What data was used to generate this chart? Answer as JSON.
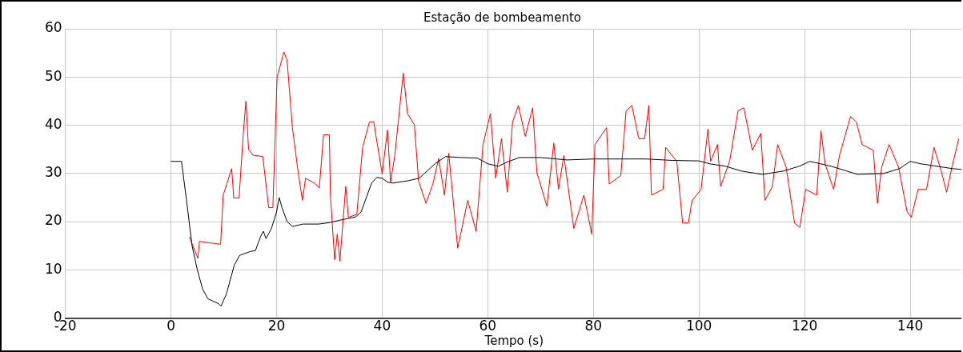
{
  "chart_data": {
    "type": "line",
    "title": "Estação de bombeamento",
    "xlabel": "Tempo (s)",
    "xlim": [
      -20,
      150
    ],
    "xticks": [
      -20,
      0,
      20,
      40,
      60,
      80,
      100,
      120,
      140
    ],
    "ylim": [
      0,
      60
    ],
    "yticks": [
      0,
      10,
      20,
      30,
      40,
      50,
      60
    ],
    "grid": true,
    "legend": false,
    "marker": "none",
    "line_style": "solid",
    "series": [
      {
        "color": "#000000",
        "x": [
          0,
          2,
          3,
          4,
          5,
          6,
          7,
          8,
          9,
          9.5,
          10.5,
          11,
          12,
          13,
          15,
          16,
          17,
          17.5,
          18,
          19,
          20,
          20.5,
          21,
          22,
          23,
          25,
          28,
          30,
          32,
          35,
          36,
          37,
          38,
          39,
          40,
          41,
          42,
          45,
          47,
          48,
          50,
          52,
          55,
          58,
          60,
          62,
          64,
          66,
          70,
          75,
          80,
          85,
          90,
          95,
          100,
          102,
          105,
          108,
          112,
          116,
          119,
          121,
          125,
          128,
          130,
          135,
          138,
          140,
          142,
          145,
          148,
          150
        ],
        "values": [
          32.5,
          32.5,
          24,
          15,
          10,
          6,
          4,
          3.5,
          3,
          2.5,
          5,
          7,
          11,
          13,
          13.8,
          14,
          17,
          18,
          16.5,
          18.5,
          22,
          25,
          23,
          20,
          19,
          19.5,
          19.5,
          19.8,
          20.3,
          21,
          22,
          25,
          28,
          29.2,
          29,
          28.2,
          28,
          28.5,
          29,
          30,
          32,
          33.5,
          33.3,
          33.2,
          32,
          31.5,
          32.5,
          33.3,
          33.3,
          32.8,
          33,
          33,
          33,
          32.7,
          32.6,
          32,
          31.5,
          30.5,
          29.8,
          30.5,
          31.5,
          32.5,
          31.5,
          30.5,
          29.8,
          30,
          31,
          32.5,
          32,
          31.5,
          31,
          30.8
        ]
      },
      {
        "color": "#ff0000",
        "x": [
          3.5,
          5.1,
          5.4,
          9.4,
          9.9,
          11.5,
          11.9,
          12.9,
          13.7,
          14.2,
          14.7,
          15.5,
          17.4,
          18.5,
          19.3,
          20.1,
          21.4,
          22,
          23,
          24.1,
          24.9,
          25.5,
          27.3,
          28.1,
          28.9,
          30,
          30.2,
          31,
          31.5,
          32,
          33.1,
          33.6,
          35.2,
          36.3,
          37.6,
          38.4,
          40,
          41,
          41.6,
          42.4,
          44,
          44.8,
          46.1,
          46.9,
          48.3,
          49.6,
          50.7,
          51.8,
          52.6,
          54.3,
          56.2,
          57.8,
          59.1,
          60.5,
          61.5,
          62.6,
          63.7,
          64.7,
          65.8,
          67.1,
          68.5,
          69.3,
          71.2,
          72.5,
          73.4,
          74.4,
          76.3,
          78.2,
          79.7,
          80.3,
          82.5,
          83,
          85.2,
          86.2,
          87.3,
          88.6,
          89.7,
          90.5,
          91,
          93.2,
          93.7,
          95.8,
          96.9,
          98,
          98.7,
          100.4,
          101.7,
          102.2,
          103.5,
          104.1,
          105.8,
          107.4,
          108.5,
          110.1,
          111.7,
          112.5,
          113.9,
          114.9,
          116.5,
          118.1,
          119.1,
          120.2,
          122.3,
          123.1,
          123.9,
          125.5,
          126.6,
          128.7,
          129.8,
          130.9,
          133,
          133.8,
          134.6,
          136,
          137.8,
          139.4,
          140.2,
          141.5,
          143.1,
          144.5,
          145.8,
          146.9,
          147.9,
          149.2
        ],
        "values": [
          16.8,
          12.4,
          15.9,
          15.3,
          25.5,
          31,
          24.9,
          24.9,
          38.3,
          45,
          35,
          33.8,
          33.5,
          22.9,
          22.9,
          50,
          55.2,
          53.4,
          39.5,
          30.2,
          24.4,
          29,
          27.9,
          27,
          38,
          38,
          25.5,
          12.1,
          17.4,
          11.8,
          27.3,
          20.9,
          21.5,
          35.4,
          40.7,
          40.7,
          29.9,
          39,
          28.2,
          33.8,
          50.8,
          42.4,
          40.1,
          28.4,
          23.8,
          27.8,
          33.1,
          25.5,
          34.2,
          14.5,
          24.4,
          18,
          36,
          42.4,
          29,
          37.2,
          26.1,
          40.7,
          44.1,
          37.7,
          43.6,
          30.2,
          23.2,
          36.3,
          26.7,
          33.7,
          18.6,
          25.5,
          17.4,
          36,
          39.5,
          27.8,
          29.6,
          43,
          44.1,
          37.2,
          37.2,
          44.1,
          25.5,
          26.7,
          35.4,
          32.5,
          19.7,
          19.7,
          24.4,
          26.7,
          39.2,
          32.5,
          36,
          27.3,
          32.5,
          43,
          43.6,
          34.8,
          38.3,
          24.4,
          27.3,
          36,
          31.3,
          19.7,
          18.8,
          26.7,
          25.5,
          38.9,
          31.9,
          26.7,
          33.7,
          41.8,
          40.7,
          36,
          34.8,
          23.8,
          31.3,
          36,
          31.3,
          22.1,
          20.9,
          26.7,
          26.7,
          35.4,
          30.8,
          26.1,
          31.3,
          37.2
        ]
      }
    ]
  }
}
